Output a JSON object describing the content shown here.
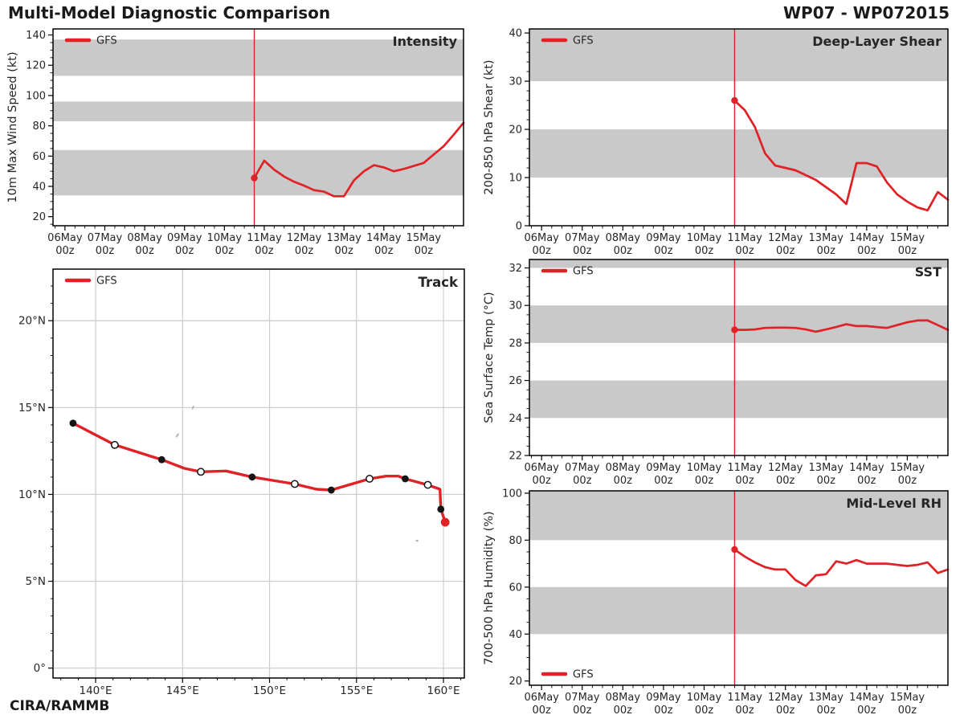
{
  "header": {
    "title": "Multi-Model Diagnostic Comparison",
    "storm_id": "WP07 - WP072015"
  },
  "footer": {
    "credit": "CIRA/RAMMB"
  },
  "legend": {
    "label": "GFS"
  },
  "colors": {
    "series": "#e02126",
    "init_line": "#e02126",
    "band": "#c9c9c9",
    "grid": "#cccccc",
    "spine": "#000000",
    "tick_text": "#262626",
    "title_text": "#111111",
    "island": "#b5b5b5",
    "marker_fill": "#141414",
    "marker_open_fill": "#ffffff"
  },
  "time_axis": {
    "xlim": [
      -0.3,
      10.0
    ],
    "day_labels": [
      "06May",
      "07May",
      "08May",
      "09May",
      "10May",
      "11May",
      "12May",
      "13May",
      "14May",
      "15May"
    ],
    "hour_label": "00z",
    "minor_step": 0.25,
    "init_time": 4.75
  },
  "chart_data": [
    {
      "id": "intensity",
      "type": "line",
      "panel_title": "Intensity",
      "ylabel": "10m Max Wind Speed (kt)",
      "ylim": [
        14,
        144
      ],
      "yticks": [
        20,
        40,
        60,
        80,
        100,
        120,
        140
      ],
      "y_minor_step": 5,
      "bands": [
        [
          34,
          64
        ],
        [
          83,
          96
        ],
        [
          113,
          137
        ]
      ],
      "legend_pos": "top-left",
      "x": [
        4.75,
        5.0,
        5.25,
        5.5,
        5.75,
        6.0,
        6.25,
        6.5,
        6.75,
        7.0,
        7.25,
        7.5,
        7.75,
        8.0,
        8.25,
        8.5,
        8.75,
        9.0,
        9.25,
        9.5,
        9.75,
        10.0
      ],
      "values": [
        45.5,
        57,
        51,
        46.5,
        43,
        40.5,
        37.5,
        36.5,
        33.5,
        33.5,
        44,
        50,
        54,
        52.5,
        50,
        51.5,
        53.5,
        55.5,
        61,
        66.5,
        74,
        82
      ]
    },
    {
      "id": "shear",
      "type": "line",
      "panel_title": "Deep-Layer Shear",
      "ylabel": "200-850 hPa Shear (kt)",
      "ylim": [
        0,
        40.85
      ],
      "yticks": [
        0,
        10,
        20,
        30,
        40
      ],
      "y_minor_step": 2,
      "bands": [
        [
          10,
          20
        ],
        [
          30,
          40.85
        ]
      ],
      "legend_pos": "top-left",
      "x": [
        4.75,
        5.0,
        5.25,
        5.5,
        5.75,
        6.0,
        6.25,
        6.5,
        6.75,
        7.0,
        7.25,
        7.5,
        7.75,
        8.0,
        8.25,
        8.5,
        8.75,
        9.0,
        9.25,
        9.5,
        9.75,
        10.0
      ],
      "values": [
        26,
        24,
        20.5,
        15,
        12.5,
        12,
        11.5,
        10.5,
        9.5,
        8,
        6.5,
        4.5,
        13,
        13,
        12.3,
        9,
        6.5,
        5,
        3.8,
        3.2,
        7,
        5.4
      ]
    },
    {
      "id": "sst",
      "type": "line",
      "panel_title": "SST",
      "ylabel": "Sea Surface Temp (°C)",
      "ylim": [
        22,
        32.45
      ],
      "yticks": [
        22,
        24,
        26,
        28,
        30,
        32
      ],
      "y_minor_step": 0.5,
      "bands": [
        [
          24,
          26
        ],
        [
          28,
          30
        ],
        [
          32,
          32.45
        ]
      ],
      "legend_pos": "top-left",
      "x": [
        4.75,
        5.0,
        5.25,
        5.5,
        5.75,
        6.0,
        6.25,
        6.5,
        6.75,
        7.0,
        7.25,
        7.5,
        7.75,
        8.0,
        8.25,
        8.5,
        8.75,
        9.0,
        9.25,
        9.5,
        9.75,
        10.0
      ],
      "values": [
        28.7,
        28.7,
        28.72,
        28.8,
        28.82,
        28.82,
        28.8,
        28.72,
        28.6,
        28.72,
        28.85,
        29.0,
        28.9,
        28.9,
        28.85,
        28.8,
        28.95,
        29.1,
        29.2,
        29.2,
        28.95,
        28.7
      ]
    },
    {
      "id": "rh",
      "type": "line",
      "panel_title": "Mid-Level RH",
      "ylabel": "700-500 hPa Humidity (%)",
      "ylim": [
        18.2,
        101
      ],
      "yticks": [
        20,
        40,
        60,
        80,
        100
      ],
      "y_minor_step": 5,
      "bands": [
        [
          40,
          60
        ],
        [
          80,
          101
        ]
      ],
      "legend_pos": "bottom-left",
      "x": [
        4.75,
        5.0,
        5.25,
        5.5,
        5.75,
        6.0,
        6.25,
        6.5,
        6.75,
        7.0,
        7.25,
        7.5,
        7.75,
        8.0,
        8.25,
        8.5,
        8.75,
        9.0,
        9.25,
        9.5,
        9.75,
        10.0
      ],
      "values": [
        76,
        73,
        70.5,
        68.5,
        67.5,
        67.5,
        63,
        60.5,
        65,
        65.5,
        71,
        70,
        71.5,
        70,
        70,
        70,
        69.5,
        69,
        69.5,
        70.5,
        66,
        67.5
      ]
    },
    {
      "id": "track",
      "type": "track",
      "panel_title": "Track",
      "legend_pos": "top-left",
      "xlim": [
        137.55,
        161.2
      ],
      "ylim": [
        -0.57,
        22.97
      ],
      "lon_ticks": [
        140,
        145,
        150,
        155,
        160
      ],
      "lon_tick_labels": [
        "140°E",
        "145°E",
        "150°E",
        "155°E",
        "160°E"
      ],
      "lat_ticks": [
        0,
        5,
        10,
        15,
        20
      ],
      "lat_tick_labels": [
        "0°",
        "5°N",
        "10°N",
        "15°N",
        "20°N"
      ],
      "minor_deg_step": 1,
      "track_points": [
        {
          "lon": 160.1,
          "lat": 8.4,
          "marker": "init"
        },
        {
          "lon": 159.85,
          "lat": 9.15,
          "marker": "filled"
        },
        {
          "lon": 159.1,
          "lat": 10.55,
          "marker": "open"
        },
        {
          "lon": 157.8,
          "lat": 10.9,
          "marker": "filled"
        },
        {
          "lon": 155.75,
          "lat": 10.9,
          "marker": "open"
        },
        {
          "lon": 153.55,
          "lat": 10.25,
          "marker": "filled"
        },
        {
          "lon": 151.45,
          "lat": 10.6,
          "marker": "open"
        },
        {
          "lon": 149.0,
          "lat": 11.0,
          "marker": "filled"
        },
        {
          "lon": 146.05,
          "lat": 11.3,
          "marker": "open"
        },
        {
          "lon": 143.8,
          "lat": 12.0,
          "marker": "filled"
        },
        {
          "lon": 141.1,
          "lat": 12.85,
          "marker": "open"
        },
        {
          "lon": 138.7,
          "lat": 14.1,
          "marker": "filled"
        }
      ],
      "path": [
        [
          138.7,
          14.1
        ],
        [
          141.1,
          12.85
        ],
        [
          143.8,
          12.0
        ],
        [
          145.1,
          11.5
        ],
        [
          146.05,
          11.3
        ],
        [
          147.5,
          11.35
        ],
        [
          149.0,
          11.0
        ],
        [
          151.45,
          10.6
        ],
        [
          152.7,
          10.3
        ],
        [
          153.55,
          10.25
        ],
        [
          155.75,
          10.9
        ],
        [
          156.7,
          11.05
        ],
        [
          157.4,
          11.05
        ],
        [
          157.8,
          10.9
        ],
        [
          159.1,
          10.55
        ],
        [
          159.8,
          10.3
        ],
        [
          159.85,
          9.15
        ],
        [
          160.1,
          8.4
        ]
      ],
      "islands": [
        {
          "lon": 144.7,
          "lat": 13.4,
          "w": 2.2,
          "h": 6.5,
          "rot": 35
        },
        {
          "lon": 145.6,
          "lat": 15.0,
          "w": 2.0,
          "h": 5.0,
          "rot": 25
        },
        {
          "lon": 158.48,
          "lat": 7.33,
          "w": 3.5,
          "h": 2.5,
          "rot": 0
        }
      ]
    }
  ]
}
